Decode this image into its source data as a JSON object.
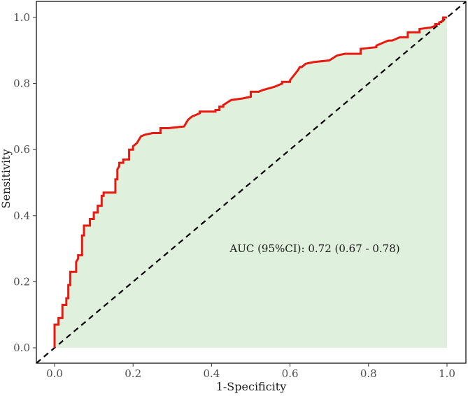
{
  "chart_data": {
    "type": "line",
    "title": "",
    "xlabel": "1-Specificity",
    "ylabel": "Sensitivity",
    "xlim": [
      0,
      1
    ],
    "ylim": [
      0,
      1
    ],
    "x_ticks": [
      0.0,
      0.2,
      0.4,
      0.6,
      0.8,
      1.0
    ],
    "x_tick_labels": [
      "0.0",
      "0.2",
      "0.4",
      "0.6",
      "0.8",
      "1.0"
    ],
    "y_ticks": [
      0.0,
      0.2,
      0.4,
      0.6,
      0.8,
      1.0
    ],
    "y_tick_labels": [
      "0.0",
      "0.2",
      "0.4",
      "0.6",
      "0.8",
      "1.0"
    ],
    "grid": false,
    "legend": "none",
    "annotation": "AUC (95%CI): 0.72 (0.67 - 0.78)",
    "colors": {
      "roc_line": "#e8190f",
      "fill": "#dff0dc",
      "reference_line": "#000000",
      "frame": "#000000"
    },
    "series": [
      {
        "x": [
          0.0,
          0.0,
          0.01,
          0.01,
          0.02,
          0.02,
          0.03,
          0.03,
          0.035,
          0.035,
          0.04,
          0.04,
          0.055,
          0.055,
          0.06,
          0.06,
          0.07,
          0.07,
          0.075,
          0.075,
          0.09,
          0.09,
          0.1,
          0.1,
          0.11,
          0.11,
          0.12,
          0.12,
          0.125,
          0.125,
          0.14,
          0.14,
          0.155,
          0.155,
          0.16,
          0.16,
          0.165,
          0.165,
          0.175,
          0.175,
          0.19,
          0.19,
          0.2,
          0.2,
          0.21,
          0.215,
          0.22,
          0.23,
          0.25,
          0.27,
          0.27,
          0.29,
          0.33,
          0.34,
          0.35,
          0.37,
          0.37,
          0.41,
          0.41,
          0.42,
          0.42,
          0.43,
          0.43,
          0.45,
          0.48,
          0.5,
          0.5,
          0.52,
          0.53,
          0.56,
          0.58,
          0.58,
          0.6,
          0.6,
          0.62,
          0.625,
          0.63,
          0.64,
          0.66,
          0.7,
          0.72,
          0.74,
          0.78,
          0.78,
          0.82,
          0.82,
          0.85,
          0.86,
          0.88,
          0.9,
          0.9,
          0.93,
          0.93,
          0.96,
          0.97,
          0.97,
          0.98,
          0.98,
          0.99,
          0.99,
          1.0
        ],
        "y": [
          0.0,
          0.07,
          0.07,
          0.09,
          0.09,
          0.13,
          0.13,
          0.15,
          0.15,
          0.19,
          0.19,
          0.23,
          0.23,
          0.26,
          0.27,
          0.28,
          0.28,
          0.34,
          0.34,
          0.37,
          0.37,
          0.39,
          0.39,
          0.41,
          0.41,
          0.43,
          0.43,
          0.46,
          0.46,
          0.47,
          0.47,
          0.47,
          0.47,
          0.51,
          0.51,
          0.54,
          0.55,
          0.56,
          0.56,
          0.57,
          0.57,
          0.6,
          0.6,
          0.61,
          0.62,
          0.63,
          0.64,
          0.645,
          0.65,
          0.65,
          0.665,
          0.665,
          0.67,
          0.69,
          0.7,
          0.71,
          0.715,
          0.715,
          0.72,
          0.72,
          0.73,
          0.73,
          0.735,
          0.75,
          0.755,
          0.76,
          0.775,
          0.775,
          0.78,
          0.79,
          0.8,
          0.805,
          0.805,
          0.81,
          0.84,
          0.85,
          0.85,
          0.86,
          0.865,
          0.87,
          0.885,
          0.89,
          0.89,
          0.905,
          0.91,
          0.915,
          0.93,
          0.93,
          0.94,
          0.94,
          0.955,
          0.955,
          0.965,
          0.97,
          0.975,
          0.98,
          0.98,
          0.985,
          0.99,
          1.0,
          1.0
        ]
      }
    ],
    "reference_line": {
      "x": [
        0,
        1
      ],
      "y": [
        0,
        1
      ]
    }
  }
}
